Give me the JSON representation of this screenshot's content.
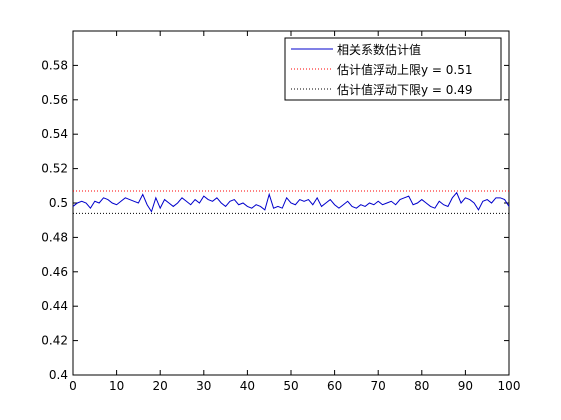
{
  "chart_data": {
    "type": "line",
    "title": "",
    "xlabel": "",
    "ylabel": "",
    "xlim": [
      0,
      100
    ],
    "ylim": [
      0.4,
      0.6
    ],
    "xticks": [
      "0",
      "10",
      "20",
      "30",
      "40",
      "50",
      "60",
      "70",
      "80",
      "90",
      "100"
    ],
    "yticks": [
      "0.4",
      "0.42",
      "0.44",
      "0.46",
      "0.48",
      "0.5",
      "0.52",
      "0.54",
      "0.56",
      "0.58"
    ],
    "grid": false,
    "legend_position": "top-right",
    "series": [
      {
        "name": "相关系数估计值",
        "color": "#0000cc",
        "style": "solid",
        "x": [
          0,
          1,
          2,
          3,
          4,
          5,
          6,
          7,
          8,
          9,
          10,
          11,
          12,
          13,
          14,
          15,
          16,
          17,
          18,
          19,
          20,
          21,
          22,
          23,
          24,
          25,
          26,
          27,
          28,
          29,
          30,
          31,
          32,
          33,
          34,
          35,
          36,
          37,
          38,
          39,
          40,
          41,
          42,
          43,
          44,
          45,
          46,
          47,
          48,
          49,
          50,
          51,
          52,
          53,
          54,
          55,
          56,
          57,
          58,
          59,
          60,
          61,
          62,
          63,
          64,
          65,
          66,
          67,
          68,
          69,
          70,
          71,
          72,
          73,
          74,
          75,
          76,
          77,
          78,
          79,
          80,
          81,
          82,
          83,
          84,
          85,
          86,
          87,
          88,
          89,
          90,
          91,
          92,
          93,
          94,
          95,
          96,
          97,
          98,
          99,
          100
        ],
        "values": [
          0.498,
          0.5,
          0.501,
          0.5,
          0.497,
          0.501,
          0.5,
          0.503,
          0.502,
          0.5,
          0.499,
          0.501,
          0.503,
          0.502,
          0.501,
          0.5,
          0.505,
          0.499,
          0.495,
          0.503,
          0.497,
          0.502,
          0.5,
          0.498,
          0.5,
          0.503,
          0.501,
          0.499,
          0.502,
          0.5,
          0.504,
          0.502,
          0.501,
          0.503,
          0.5,
          0.498,
          0.501,
          0.502,
          0.499,
          0.5,
          0.498,
          0.497,
          0.499,
          0.498,
          0.496,
          0.505,
          0.497,
          0.498,
          0.497,
          0.503,
          0.5,
          0.499,
          0.502,
          0.501,
          0.502,
          0.499,
          0.503,
          0.498,
          0.5,
          0.502,
          0.499,
          0.497,
          0.499,
          0.501,
          0.498,
          0.497,
          0.499,
          0.498,
          0.5,
          0.499,
          0.501,
          0.499,
          0.5,
          0.501,
          0.499,
          0.502,
          0.503,
          0.504,
          0.499,
          0.5,
          0.502,
          0.5,
          0.498,
          0.497,
          0.501,
          0.499,
          0.498,
          0.503,
          0.506,
          0.5,
          0.503,
          0.502,
          0.5,
          0.496,
          0.501,
          0.502,
          0.5,
          0.503,
          0.503,
          0.502,
          0.498
        ]
      },
      {
        "name": "估计值浮动上限y = 0.51",
        "color": "#ff0000",
        "style": "dotted",
        "x": [
          0,
          100
        ],
        "values": [
          0.507,
          0.507
        ]
      },
      {
        "name": "估计值浮动下限y = 0.49",
        "color": "#000000",
        "style": "dotted",
        "x": [
          0,
          100
        ],
        "values": [
          0.494,
          0.494
        ]
      }
    ]
  }
}
